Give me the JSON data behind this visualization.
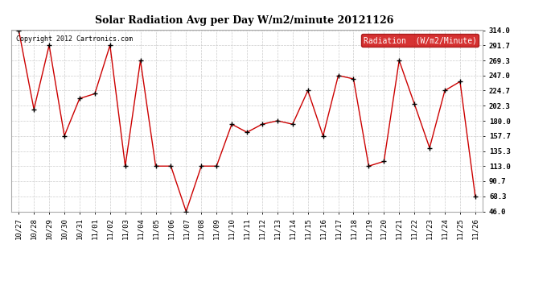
{
  "title": "Solar Radiation Avg per Day W/m2/minute 20121126",
  "copyright": "Copyright 2012 Cartronics.com",
  "legend_label": "Radiation  (W/m2/Minute)",
  "dates": [
    "10/27",
    "10/28",
    "10/29",
    "10/30",
    "10/31",
    "11/01",
    "11/02",
    "11/03",
    "11/04",
    "11/05",
    "11/06",
    "11/07",
    "11/08",
    "11/09",
    "11/10",
    "11/11",
    "11/12",
    "11/13",
    "11/14",
    "11/15",
    "11/16",
    "11/17",
    "11/18",
    "11/19",
    "11/20",
    "11/21",
    "11/22",
    "11/23",
    "11/24",
    "11/25",
    "11/26"
  ],
  "values": [
    314.0,
    197.0,
    291.7,
    157.7,
    213.0,
    220.0,
    291.7,
    113.0,
    269.3,
    113.0,
    113.0,
    46.0,
    113.0,
    113.0,
    175.0,
    163.0,
    175.0,
    180.0,
    175.0,
    224.7,
    157.7,
    247.0,
    242.0,
    113.0,
    120.0,
    269.3,
    205.0,
    140.0,
    224.7,
    238.0,
    68.3
  ],
  "line_color": "#cc0000",
  "marker_color": "#000000",
  "bg_color": "#ffffff",
  "grid_color": "#cccccc",
  "ylim_min": 46.0,
  "ylim_max": 314.0,
  "yticks": [
    314.0,
    291.7,
    269.3,
    247.0,
    224.7,
    202.3,
    180.0,
    157.7,
    135.3,
    113.0,
    90.7,
    68.3,
    46.0
  ],
  "title_fontsize": 9,
  "axis_fontsize": 6.5,
  "copyright_fontsize": 6,
  "legend_fontsize": 7
}
